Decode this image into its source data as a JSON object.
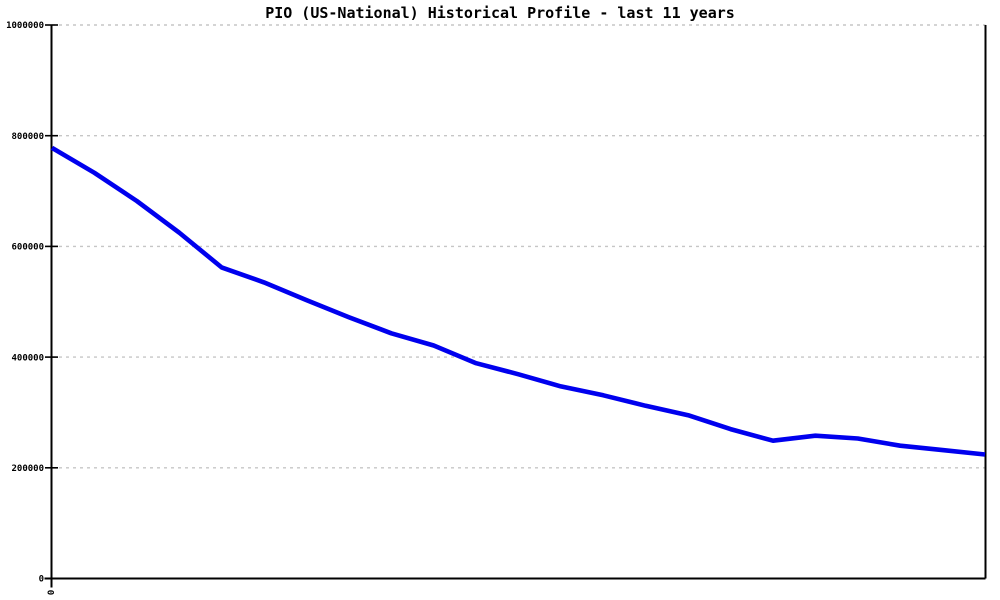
{
  "chart_data": {
    "type": "line",
    "title": "PIO (US-National) Historical Profile - last 11 years",
    "xlabel": "",
    "ylabel": "",
    "x_origin_tick_label": "0",
    "y_tick_values": [
      0,
      200000,
      400000,
      600000,
      800000,
      1000000
    ],
    "y_tick_labels": [
      "0",
      "200000",
      "400000",
      "600000",
      "800000",
      "1000000"
    ],
    "ylim": [
      0,
      1000000
    ],
    "grid": "horizontal-dashed",
    "legend_position": "none",
    "series": [
      {
        "name": "PIO (US-National)",
        "color": "#0000ee",
        "values": [
          778000,
          733000,
          682000,
          625000,
          562000,
          535000,
          503000,
          472000,
          443000,
          421000,
          389000,
          369000,
          347000,
          331000,
          312000,
          295000,
          270000,
          249000,
          258000,
          253000,
          240000,
          232000,
          224000
        ]
      }
    ]
  },
  "colors": {
    "background": "#ffffff",
    "grid": "#c6c6c6",
    "axis": "#000000",
    "line": "#0000ee",
    "text": "#000000"
  }
}
